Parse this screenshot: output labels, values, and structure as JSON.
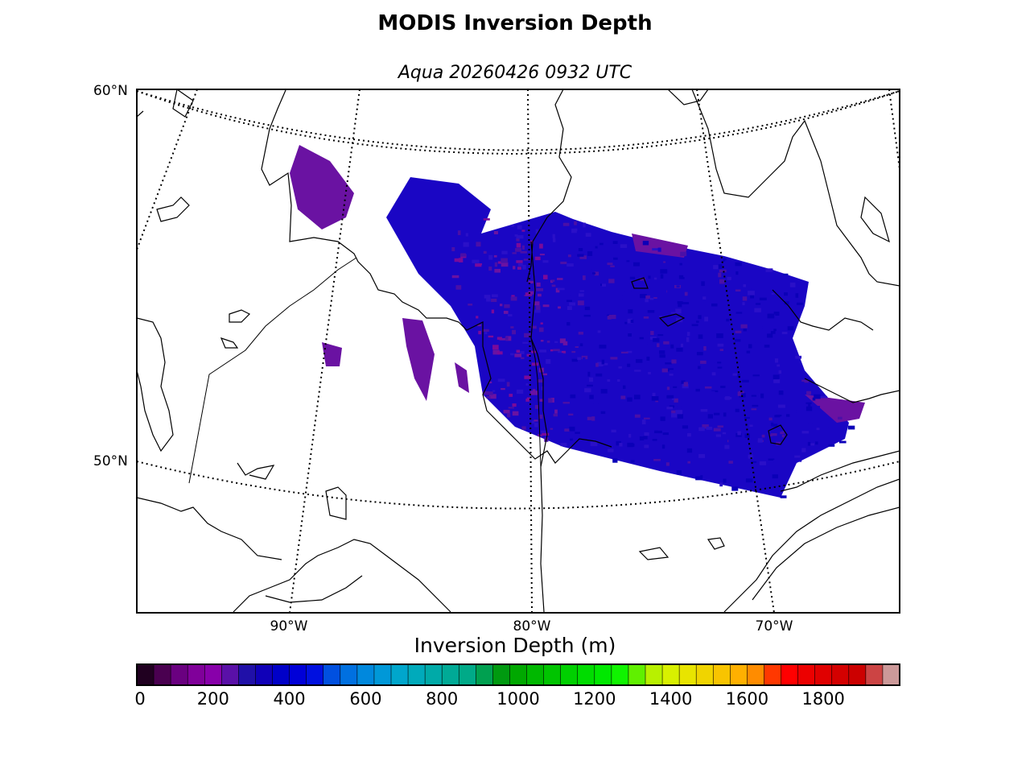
{
  "figure": {
    "title": "MODIS Inversion Depth",
    "subtitle": "Aqua 20260426 0932 UTC"
  },
  "map": {
    "lat_labels": [
      "60°N",
      "50°N"
    ],
    "lon_labels": [
      "90°W",
      "80°W",
      "70°W"
    ],
    "data_field": "Inversion Depth",
    "dominant_values_m": [
      200,
      400
    ],
    "swath_colors": [
      "#0b00b8",
      "#1a06c4",
      "#2a10c8",
      "#4a0fa8",
      "#6a12a2",
      "#7a0a9a"
    ],
    "coastline_color": "#000000"
  },
  "colorbar": {
    "label": "Inversion Depth (m)",
    "ticks": [
      "0",
      "200",
      "400",
      "600",
      "800",
      "1000",
      "1200",
      "1400",
      "1600",
      "1800"
    ],
    "min": 0,
    "max": 1950,
    "step": 50,
    "colors": [
      "#200020",
      "#4a0050",
      "#6a0080",
      "#80009a",
      "#8800aa",
      "#5a10a8",
      "#2010a8",
      "#1000b8",
      "#0000c8",
      "#0000d8",
      "#0010e0",
      "#0050e0",
      "#0070e0",
      "#0088dd",
      "#0098d8",
      "#00a6cc",
      "#00aabb",
      "#00aaa8",
      "#00aa96",
      "#00aa88",
      "#00a050",
      "#009a10",
      "#00a800",
      "#00b800",
      "#00c400",
      "#00d000",
      "#00dc00",
      "#00e800",
      "#10f400",
      "#60f000",
      "#b8f000",
      "#d8f000",
      "#e8e400",
      "#f0d400",
      "#f8c400",
      "#ffb000",
      "#ff8c00",
      "#ff3800",
      "#ff0000",
      "#ec0000",
      "#e00000",
      "#d40000",
      "#cc0000",
      "#cc4444",
      "#cc9999"
    ]
  }
}
